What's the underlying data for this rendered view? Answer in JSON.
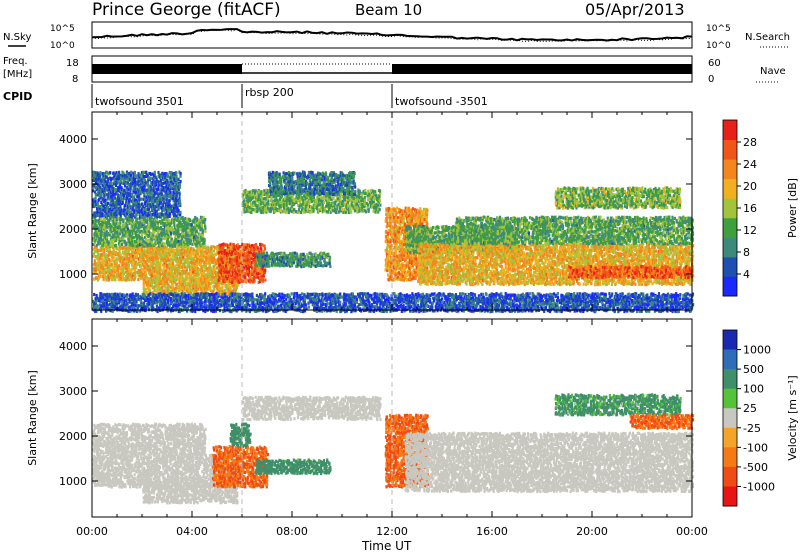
{
  "header": {
    "station": "Prince George (fitACF)",
    "beam": "Beam 10",
    "date": "05/Apr/2013"
  },
  "top_strip": {
    "left_label": "N.Sky",
    "right_label": "N.Search",
    "left_ticks": [
      "10^5",
      "10^0"
    ],
    "right_ticks": [
      "10^5",
      "10^0"
    ]
  },
  "freq_strip": {
    "left_label_line1": "Freq.",
    "left_label_line2": "[MHz]",
    "right_label": "Nave",
    "left_ticks": [
      "18",
      "8"
    ],
    "right_ticks": [
      "60",
      "0"
    ]
  },
  "cpid": {
    "label": "CPID",
    "segments": [
      {
        "name": "twofsound 3501",
        "start_h": 0,
        "end_h": 6
      },
      {
        "name": "rbsp 200",
        "start_h": 6,
        "end_h": 12
      },
      {
        "name": "twofsound -3501",
        "start_h": 12,
        "end_h": 24
      }
    ]
  },
  "time_axis": {
    "label": "Time UT",
    "ticks": [
      "00:00",
      "04:00",
      "08:00",
      "12:00",
      "16:00",
      "20:00",
      "00:00"
    ]
  },
  "colors": {
    "power": [
      "#1a2aff",
      "#1f4fb0",
      "#3d8a7a",
      "#3f9f3f",
      "#a3c43a",
      "#f0b020",
      "#f5861d",
      "#f0551a",
      "#e8201a"
    ],
    "velocity": [
      "#1a2ab0",
      "#2f6db8",
      "#3f8f6a",
      "#55c23a",
      "#c8c8c0",
      "#f5a42a",
      "#f57a15",
      "#f04a15",
      "#e81515"
    ]
  },
  "chart_data": [
    {
      "type": "heatmap",
      "name": "power",
      "ylabel": "Slant Range [km]",
      "xlabel": "",
      "ylim": [
        200,
        4600
      ],
      "xlim_hours": [
        0,
        24
      ],
      "yticks": [
        1000,
        2000,
        3000,
        4000
      ],
      "colorbar": {
        "title": "Power [dB]",
        "ticks": [
          4,
          8,
          12,
          16,
          20,
          24,
          28
        ],
        "range": [
          0,
          32
        ]
      },
      "scatter_bands": [
        {
          "t0": 0.0,
          "t1": 6.0,
          "r0": 900,
          "r1": 1650,
          "v": 20
        },
        {
          "t0": 0.0,
          "t1": 4.5,
          "r0": 1650,
          "r1": 2300,
          "v": 12
        },
        {
          "t0": 0.0,
          "t1": 3.5,
          "r0": 2300,
          "r1": 3300,
          "v": 6
        },
        {
          "t0": 2.0,
          "t1": 5.8,
          "r0": 550,
          "r1": 950,
          "v": 20
        },
        {
          "t0": 5.0,
          "t1": 6.9,
          "r0": 850,
          "r1": 1700,
          "v": 27
        },
        {
          "t0": 6.5,
          "t1": 9.5,
          "r0": 1200,
          "r1": 1500,
          "v": 10
        },
        {
          "t0": 6.0,
          "t1": 11.5,
          "r0": 2400,
          "r1": 2900,
          "v": 13
        },
        {
          "t0": 7.0,
          "t1": 10.5,
          "r0": 2800,
          "r1": 3300,
          "v": 8
        },
        {
          "t0": 11.7,
          "t1": 13.4,
          "r0": 900,
          "r1": 2500,
          "v": 22
        },
        {
          "t0": 12.5,
          "t1": 17.0,
          "r0": 1500,
          "r1": 2100,
          "v": 12
        },
        {
          "t0": 13.0,
          "t1": 24.0,
          "r0": 800,
          "r1": 1700,
          "v": 20
        },
        {
          "t0": 14.5,
          "t1": 24.0,
          "r0": 1700,
          "r1": 2300,
          "v": 12
        },
        {
          "t0": 18.5,
          "t1": 23.5,
          "r0": 2500,
          "r1": 2950,
          "v": 14
        },
        {
          "t0": 19.0,
          "t1": 24.0,
          "r0": 950,
          "r1": 1200,
          "v": 26
        },
        {
          "t0": 0.0,
          "t1": 24.0,
          "r0": 200,
          "r1": 600,
          "v": 5
        }
      ]
    },
    {
      "type": "heatmap",
      "name": "velocity",
      "ylabel": "Slant Range [km]",
      "xlabel": "Time UT",
      "ylim": [
        200,
        4600
      ],
      "xlim_hours": [
        0,
        24
      ],
      "yticks": [
        1000,
        2000,
        3000,
        4000
      ],
      "colorbar": {
        "title": "Velocity [m s⁻¹]",
        "ticks": [
          1000,
          500,
          100,
          25,
          -25,
          -100,
          -500,
          -1000
        ]
      },
      "scatter_bands": [
        {
          "t0": 0.0,
          "t1": 6.0,
          "r0": 900,
          "r1": 1650,
          "v": 0
        },
        {
          "t0": 0.0,
          "t1": 4.5,
          "r0": 1650,
          "r1": 2300,
          "v": 0
        },
        {
          "t0": 2.0,
          "t1": 5.8,
          "r0": 550,
          "r1": 950,
          "v": 0
        },
        {
          "t0": 4.8,
          "t1": 7.0,
          "r0": 900,
          "r1": 1800,
          "v": -300
        },
        {
          "t0": 5.5,
          "t1": 6.3,
          "r0": 1800,
          "r1": 2300,
          "v": 150
        },
        {
          "t0": 6.5,
          "t1": 9.5,
          "r0": 1200,
          "r1": 1500,
          "v": 150
        },
        {
          "t0": 6.0,
          "t1": 11.5,
          "r0": 2400,
          "r1": 2900,
          "v": 0
        },
        {
          "t0": 11.7,
          "t1": 13.4,
          "r0": 900,
          "r1": 2500,
          "v": -300
        },
        {
          "t0": 12.5,
          "t1": 24.0,
          "r0": 800,
          "r1": 2100,
          "v": 0
        },
        {
          "t0": 18.5,
          "t1": 23.5,
          "r0": 2500,
          "r1": 2950,
          "v": 120
        },
        {
          "t0": 21.5,
          "t1": 24.0,
          "r0": 2200,
          "r1": 2500,
          "v": -300
        }
      ]
    }
  ]
}
